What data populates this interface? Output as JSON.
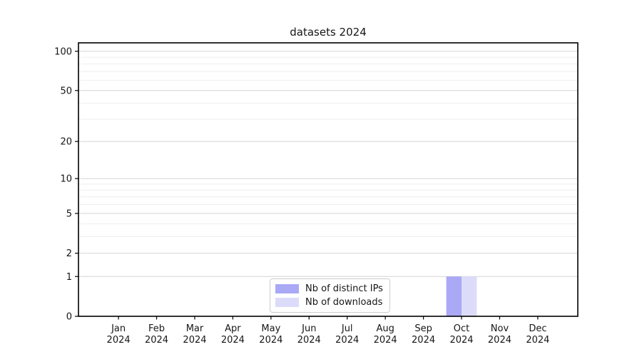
{
  "chart_data": {
    "type": "bar",
    "title": "datasets 2024",
    "categories": [
      "Jan",
      "Feb",
      "Mar",
      "Apr",
      "May",
      "Jun",
      "Jul",
      "Aug",
      "Sep",
      "Oct",
      "Nov",
      "Dec"
    ],
    "category_sublabel": "2024",
    "series": [
      {
        "name": "Nb of distinct IPs",
        "color": "#a9a9f6",
        "values": [
          0,
          0,
          0,
          0,
          0,
          0,
          0,
          0,
          0,
          1,
          0,
          0
        ]
      },
      {
        "name": "Nb of downloads",
        "color": "#dcdcfa",
        "values": [
          0,
          0,
          0,
          0,
          0,
          0,
          0,
          0,
          0,
          1,
          0,
          0
        ]
      }
    ],
    "y_ticks": [
      0,
      1,
      2,
      5,
      10,
      20,
      50,
      100
    ],
    "y_minor_ticks": [
      3,
      4,
      6,
      7,
      8,
      9,
      30,
      40,
      60,
      70,
      80,
      90
    ],
    "yscale": "log1p",
    "ylim": [
      0,
      116
    ],
    "grid": true,
    "legend_position": "lower center",
    "colors": {
      "axis": "#000000",
      "tick_label": "#161616",
      "grid_major": "#d4d4d4",
      "grid_minor": "#eeeeee",
      "background": "#ffffff"
    }
  }
}
